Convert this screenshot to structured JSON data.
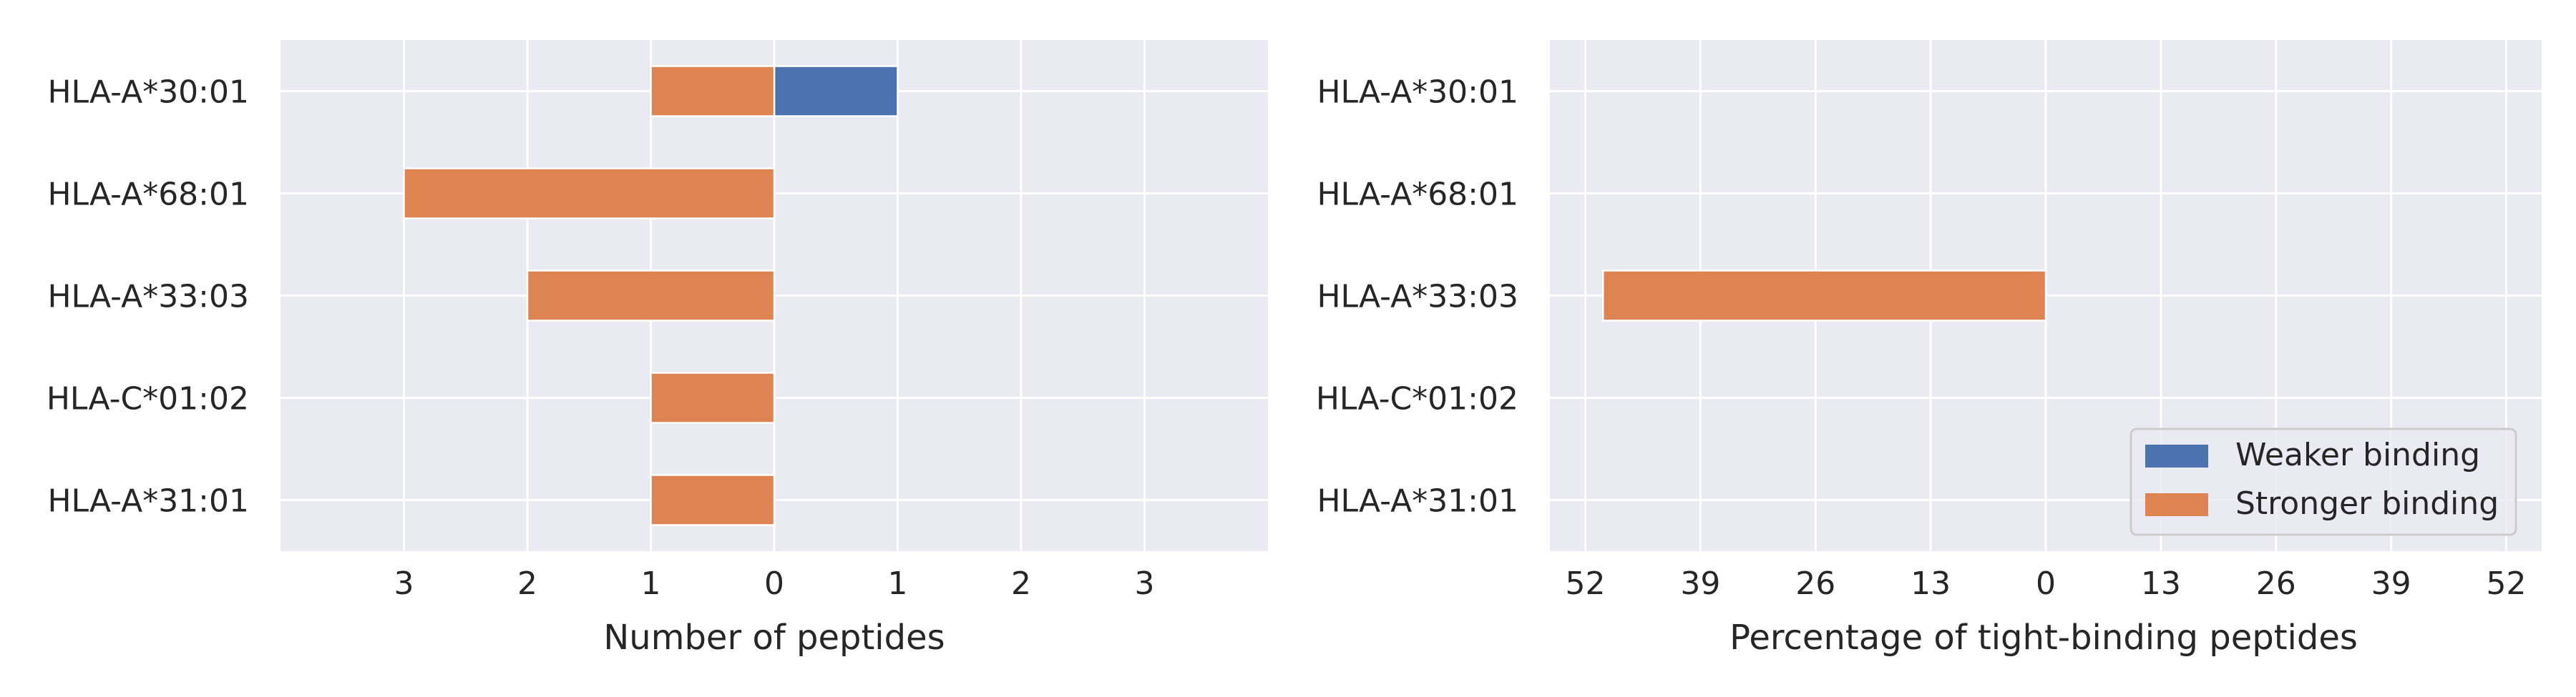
{
  "colors": {
    "background": "#eaeaf2",
    "grid": "#ffffff",
    "weaker": "#4c72b0",
    "stronger": "#dd8452",
    "text": "#262626"
  },
  "legend": {
    "placement": "lower-right",
    "items": [
      {
        "label": "Weaker binding",
        "color": "#4c72b0"
      },
      {
        "label": "Stronger binding",
        "color": "#dd8452"
      }
    ]
  },
  "chart_data": [
    {
      "type": "bar",
      "orientation": "horizontal",
      "stacking": "diverging",
      "title": "",
      "xlabel": "Number of peptides",
      "ylabel": "",
      "categories": [
        "HLA-A*30:01",
        "HLA-A*68:01",
        "HLA-A*33:03",
        "HLA-C*01:02",
        "HLA-A*31:01"
      ],
      "xlim": [
        -4,
        4
      ],
      "xticks": [
        -3,
        -2,
        -1,
        0,
        1,
        2,
        3
      ],
      "xtick_labels": [
        "3",
        "2",
        "1",
        "0",
        "1",
        "2",
        "3"
      ],
      "grid": true,
      "series": [
        {
          "name": "Weaker binding",
          "direction": "right",
          "values": [
            1,
            0,
            0,
            0,
            0
          ]
        },
        {
          "name": "Stronger binding",
          "direction": "left",
          "values": [
            1,
            3,
            2,
            1,
            1
          ]
        }
      ]
    },
    {
      "type": "bar",
      "orientation": "horizontal",
      "stacking": "diverging",
      "title": "",
      "xlabel": "Percentage of tight-binding peptides",
      "ylabel": "",
      "categories": [
        "HLA-A*30:01",
        "HLA-A*68:01",
        "HLA-A*33:03",
        "HLA-C*01:02",
        "HLA-A*31:01"
      ],
      "xlim": [
        -56,
        56
      ],
      "xticks": [
        -52,
        -39,
        -26,
        -13,
        0,
        13,
        26,
        39,
        52
      ],
      "xtick_labels": [
        "52",
        "39",
        "26",
        "13",
        "0",
        "13",
        "26",
        "39",
        "52"
      ],
      "grid": true,
      "series": [
        {
          "name": "Weaker binding",
          "direction": "right",
          "values": [
            0,
            0,
            0,
            0,
            0
          ]
        },
        {
          "name": "Stronger binding",
          "direction": "left",
          "values": [
            0,
            0,
            50,
            0,
            0
          ]
        }
      ]
    }
  ]
}
